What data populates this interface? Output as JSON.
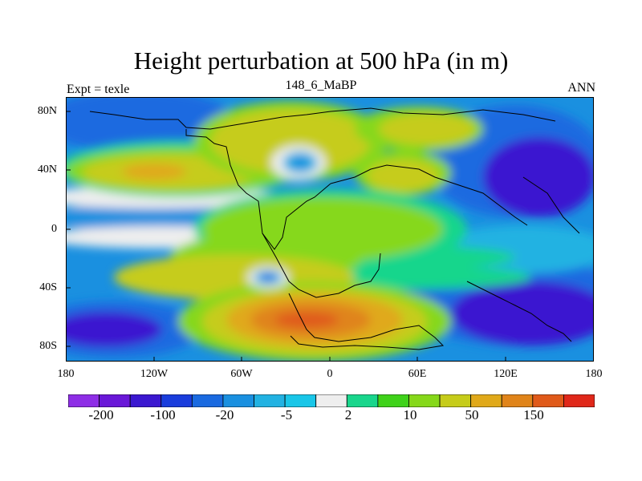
{
  "title": "Height perturbation at 500 hPa (in m)",
  "left_string": "Expt = texle",
  "center_string": "148_6_MaBP",
  "right_string": "ANN",
  "map": {
    "projection": "cylindrical-equidistant",
    "lon_range": [
      -180,
      180
    ],
    "lat_range": [
      -90,
      90
    ],
    "lat_ticks": [
      "80N",
      "40N",
      "0",
      "40S",
      "80S"
    ],
    "lon_ticks": [
      "180",
      "120W",
      "60W",
      "0",
      "60E",
      "120E",
      "180"
    ],
    "fields": [
      {
        "name": "southern-high",
        "lon": -8,
        "lat": -65,
        "level": 18
      },
      {
        "name": "north-atlantic-high",
        "lon": -110,
        "lat": 40,
        "level": 16
      },
      {
        "name": "tropical-plateau",
        "lon": -10,
        "lat": 10,
        "level": 14
      },
      {
        "name": "north-pacific-low",
        "lon": 150,
        "lat": 45,
        "level": 4
      },
      {
        "name": "south-pacific-low",
        "lon": 140,
        "lat": -55,
        "level": 3
      },
      {
        "name": "north-polar-low",
        "lon": -140,
        "lat": 80,
        "level": 6
      },
      {
        "name": "west-pacific-low",
        "lon": -150,
        "lat": -70,
        "level": 4
      }
    ]
  },
  "colorbar": {
    "colors": [
      "#8e2ee6",
      "#6a18d8",
      "#3b18d0",
      "#1a3ddc",
      "#1a6ae0",
      "#1a90e0",
      "#22b2e2",
      "#19c6e8",
      "#eeeeee",
      "#19d68c",
      "#3fd21a",
      "#86d81a",
      "#c6cc1a",
      "#e0a91a",
      "#e0841a",
      "#e05a1a",
      "#e0281a"
    ],
    "labels": [
      "-200",
      "-100",
      "-20",
      "-5",
      "2",
      "10",
      "50",
      "150"
    ]
  }
}
